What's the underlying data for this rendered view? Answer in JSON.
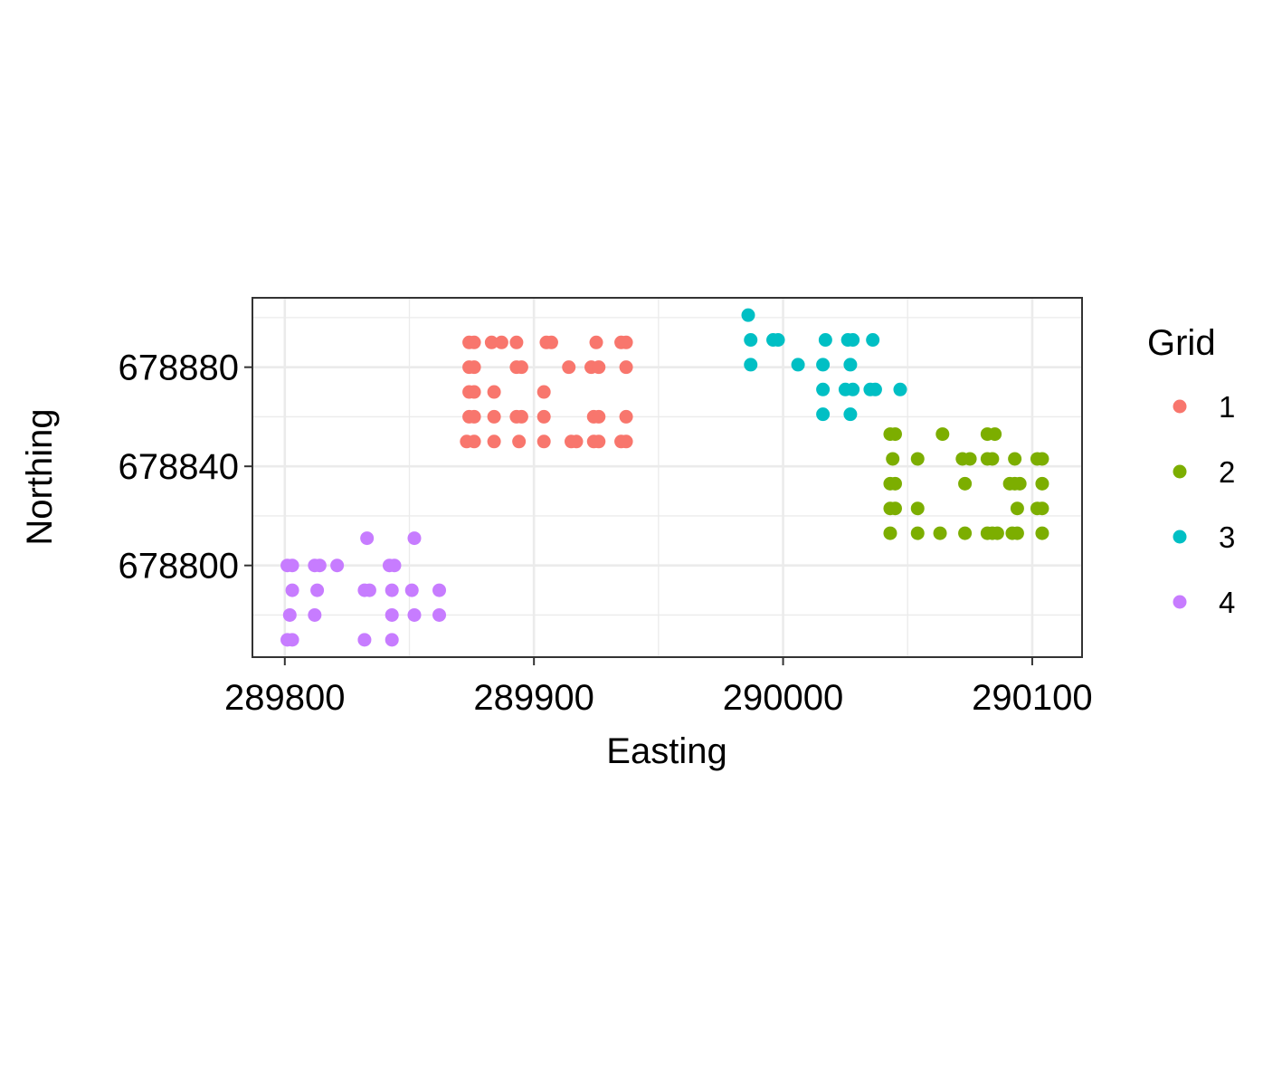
{
  "chart_data": {
    "type": "scatter",
    "xlabel": "Easting",
    "ylabel": "Northing",
    "xlim": [
      289787,
      290120
    ],
    "ylim": [
      678763,
      678908
    ],
    "xticks": [
      289800,
      289900,
      290000,
      290100
    ],
    "xtick_labels": [
      "289800",
      "289900",
      "290000",
      "290100"
    ],
    "yticks": [
      678800,
      678840,
      678880
    ],
    "ytick_labels": [
      "678800",
      "678840",
      "678880"
    ],
    "grid": true,
    "legend": {
      "title": "Grid",
      "position": "right"
    },
    "series": [
      {
        "name": "1",
        "color": "#F8766D",
        "points": [
          [
            289874,
            678890
          ],
          [
            289876,
            678890
          ],
          [
            289883,
            678890
          ],
          [
            289887,
            678890
          ],
          [
            289893,
            678890
          ],
          [
            289905,
            678890
          ],
          [
            289907,
            678890
          ],
          [
            289925,
            678890
          ],
          [
            289935,
            678890
          ],
          [
            289937,
            678890
          ],
          [
            289874,
            678880
          ],
          [
            289876,
            678880
          ],
          [
            289893,
            678880
          ],
          [
            289895,
            678880
          ],
          [
            289914,
            678880
          ],
          [
            289923,
            678880
          ],
          [
            289926,
            678880
          ],
          [
            289937,
            678880
          ],
          [
            289874,
            678870
          ],
          [
            289876,
            678870
          ],
          [
            289884,
            678870
          ],
          [
            289904,
            678870
          ],
          [
            289874,
            678860
          ],
          [
            289876,
            678860
          ],
          [
            289884,
            678860
          ],
          [
            289893,
            678860
          ],
          [
            289895,
            678860
          ],
          [
            289904,
            678860
          ],
          [
            289924,
            678860
          ],
          [
            289926,
            678860
          ],
          [
            289937,
            678860
          ],
          [
            289873,
            678850
          ],
          [
            289876,
            678850
          ],
          [
            289884,
            678850
          ],
          [
            289894,
            678850
          ],
          [
            289904,
            678850
          ],
          [
            289915,
            678850
          ],
          [
            289917,
            678850
          ],
          [
            289924,
            678850
          ],
          [
            289926,
            678850
          ],
          [
            289935,
            678850
          ],
          [
            289937,
            678850
          ]
        ]
      },
      {
        "name": "2",
        "color": "#7CAE00",
        "points": [
          [
            290043,
            678853
          ],
          [
            290045,
            678853
          ],
          [
            290064,
            678853
          ],
          [
            290082,
            678853
          ],
          [
            290085,
            678853
          ],
          [
            290044,
            678843
          ],
          [
            290054,
            678843
          ],
          [
            290072,
            678843
          ],
          [
            290075,
            678843
          ],
          [
            290082,
            678843
          ],
          [
            290084,
            678843
          ],
          [
            290093,
            678843
          ],
          [
            290102,
            678843
          ],
          [
            290104,
            678843
          ],
          [
            290043,
            678833
          ],
          [
            290045,
            678833
          ],
          [
            290073,
            678833
          ],
          [
            290091,
            678833
          ],
          [
            290093,
            678833
          ],
          [
            290095,
            678833
          ],
          [
            290104,
            678833
          ],
          [
            290043,
            678823
          ],
          [
            290045,
            678823
          ],
          [
            290054,
            678823
          ],
          [
            290094,
            678823
          ],
          [
            290102,
            678823
          ],
          [
            290104,
            678823
          ],
          [
            290043,
            678813
          ],
          [
            290054,
            678813
          ],
          [
            290063,
            678813
          ],
          [
            290073,
            678813
          ],
          [
            290082,
            678813
          ],
          [
            290084,
            678813
          ],
          [
            290086,
            678813
          ],
          [
            290092,
            678813
          ],
          [
            290094,
            678813
          ],
          [
            290104,
            678813
          ]
        ]
      },
      {
        "name": "3",
        "color": "#00BFC4",
        "points": [
          [
            289986,
            678901
          ],
          [
            289987,
            678891
          ],
          [
            289996,
            678891
          ],
          [
            289998,
            678891
          ],
          [
            290017,
            678891
          ],
          [
            290026,
            678891
          ],
          [
            290028,
            678891
          ],
          [
            290036,
            678891
          ],
          [
            289987,
            678881
          ],
          [
            290006,
            678881
          ],
          [
            290016,
            678881
          ],
          [
            290027,
            678881
          ],
          [
            290016,
            678871
          ],
          [
            290025,
            678871
          ],
          [
            290028,
            678871
          ],
          [
            290035,
            678871
          ],
          [
            290037,
            678871
          ],
          [
            290047,
            678871
          ],
          [
            290016,
            678861
          ],
          [
            290027,
            678861
          ]
        ]
      },
      {
        "name": "4",
        "color": "#C77CFF",
        "points": [
          [
            289833,
            678811
          ],
          [
            289852,
            678811
          ],
          [
            289801,
            678800
          ],
          [
            289803,
            678800
          ],
          [
            289812,
            678800
          ],
          [
            289814,
            678800
          ],
          [
            289821,
            678800
          ],
          [
            289842,
            678800
          ],
          [
            289844,
            678800
          ],
          [
            289803,
            678790
          ],
          [
            289813,
            678790
          ],
          [
            289832,
            678790
          ],
          [
            289834,
            678790
          ],
          [
            289843,
            678790
          ],
          [
            289851,
            678790
          ],
          [
            289862,
            678790
          ],
          [
            289802,
            678780
          ],
          [
            289812,
            678780
          ],
          [
            289843,
            678780
          ],
          [
            289852,
            678780
          ],
          [
            289862,
            678780
          ],
          [
            289801,
            678770
          ],
          [
            289803,
            678770
          ],
          [
            289832,
            678770
          ],
          [
            289843,
            678770
          ]
        ]
      }
    ]
  }
}
